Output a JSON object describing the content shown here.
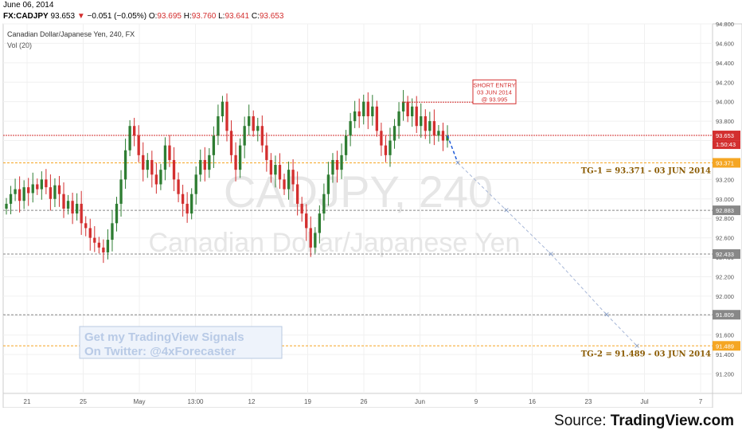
{
  "header": {
    "date": "June 06, 2014",
    "symbol": "FX:CADJPY",
    "last": "93.653",
    "arrow": "▼",
    "change": "−0.051 (−0.05%)",
    "o_label": "O:",
    "o_val": "93.695",
    "h_label": "H:",
    "h_val": "93.760",
    "l_label": "L:",
    "l_val": "93.641",
    "c_label": "C:",
    "c_val": "93.653"
  },
  "chart_data": {
    "type": "candlestick",
    "title": "Canadian Dollar/Japanese Yen, 240, FX",
    "indicator": "Vol (20)",
    "watermark_symbol": "CADJPY, 240",
    "watermark_name": "Canadian Dollar/Japanese Yen",
    "overlay_text_line1": "Get my TradingView Signals",
    "overlay_text_line2": "On Twitter: @4xForecaster",
    "x_ticks": [
      "21",
      "25",
      "May",
      "13:00",
      "12",
      "19",
      "26",
      "Jun",
      "9",
      "16",
      "23",
      "Jul",
      "7"
    ],
    "y_ticks": [
      "94.800",
      "94.600",
      "94.400",
      "94.200",
      "94.000",
      "93.800",
      "93.600",
      "93.400",
      "93.200",
      "93.000",
      "92.800",
      "92.600",
      "92.400",
      "92.200",
      "92.000",
      "91.800",
      "91.600",
      "91.400",
      "91.200"
    ],
    "ylim": [
      91.0,
      94.8
    ],
    "bullish_color": "#2e7d32",
    "bearish_color": "#d32f2f",
    "candles_close": [
      92.95,
      93.05,
      93.1,
      92.98,
      93.12,
      93.06,
      93.15,
      93.1,
      93.2,
      93.12,
      93.0,
      93.14,
      93.05,
      92.9,
      92.98,
      92.85,
      92.95,
      92.75,
      92.7,
      92.6,
      92.55,
      92.5,
      92.45,
      92.58,
      92.75,
      92.95,
      93.2,
      93.5,
      93.75,
      93.65,
      93.45,
      93.3,
      93.4,
      93.25,
      93.15,
      93.3,
      93.55,
      93.4,
      93.2,
      93.05,
      92.95,
      92.85,
      93.05,
      93.25,
      93.4,
      93.3,
      93.45,
      93.65,
      93.85,
      94.0,
      93.7,
      93.45,
      93.3,
      93.55,
      93.75,
      93.85,
      93.7,
      93.75,
      93.55,
      93.4,
      93.25,
      93.35,
      93.2,
      93.1,
      93.3,
      93.15,
      92.95,
      92.85,
      92.7,
      92.5,
      92.65,
      92.85,
      93.05,
      93.25,
      93.4,
      93.3,
      93.45,
      93.65,
      93.8,
      93.9,
      93.85,
      94.0,
      93.85,
      93.95,
      93.7,
      93.55,
      93.45,
      93.6,
      93.75,
      93.9,
      94.0,
      93.85,
      93.95,
      93.75,
      93.85,
      93.7,
      93.8,
      93.65,
      93.7,
      93.6,
      93.65
    ],
    "levels": [
      {
        "name": "current",
        "value": 93.653,
        "label": "93.653",
        "sublabel": "1:50:43",
        "color": "#d32f2f"
      },
      {
        "name": "tg1",
        "value": 93.371,
        "label": "93.371",
        "text": "TG-1 = 93.371 - 03 JUN 2014",
        "color": "#f5a623"
      },
      {
        "name": "level-92883",
        "value": 92.883,
        "label": "92.883",
        "color": "#888888"
      },
      {
        "name": "level-92433",
        "value": 92.433,
        "label": "92.433",
        "color": "#888888"
      },
      {
        "name": "level-91809",
        "value": 91.809,
        "label": "91.809",
        "color": "#888888"
      },
      {
        "name": "tg2",
        "value": 91.489,
        "label": "91.489",
        "text": "TG-2 = 91.489 - 03 JUN 2014",
        "color": "#f5a623"
      }
    ],
    "short_entry": {
      "line1": "SHORT ENTRY",
      "line2": "03 JUN 2014",
      "line3": "@ 93.995",
      "value": 93.995,
      "color": "#d32f2f"
    },
    "projection": [
      93.653,
      93.371,
      92.883,
      92.433,
      91.809,
      91.489
    ]
  },
  "footer": {
    "source_prefix": "Source: ",
    "source_name": "TradingView.com"
  }
}
